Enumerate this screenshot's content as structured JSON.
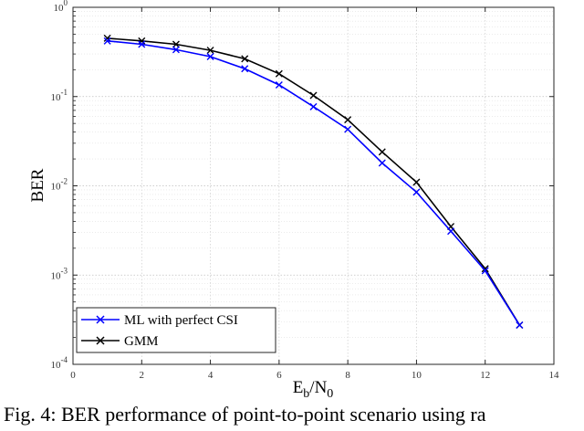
{
  "chart_data": {
    "type": "line",
    "xlabel": {
      "main": "E",
      "sub1": "b",
      "sep": "/N",
      "sub2": "0"
    },
    "ylabel": "BER",
    "xlim": [
      0,
      14
    ],
    "ylim": [
      0.0001,
      1
    ],
    "yscale": "log",
    "grid": true,
    "legend_position": "bottom-left",
    "x_ticks": [
      "0",
      "2",
      "4",
      "6",
      "8",
      "10",
      "12",
      "14"
    ],
    "y_ticks": [
      {
        "base": "10",
        "exp": "-4"
      },
      {
        "base": "10",
        "exp": "-3"
      },
      {
        "base": "10",
        "exp": "-2"
      },
      {
        "base": "10",
        "exp": "-1"
      },
      {
        "base": "10",
        "exp": "0"
      }
    ],
    "series": [
      {
        "name": "ML with perfect CSI",
        "color": "#0000ff",
        "x": [
          1,
          2,
          3,
          4,
          5,
          6,
          7,
          8,
          9,
          10,
          11,
          12,
          13
        ],
        "y": [
          0.42,
          0.385,
          0.335,
          0.28,
          0.205,
          0.135,
          0.077,
          0.043,
          0.018,
          0.0085,
          0.0031,
          0.00112,
          0.000275
        ]
      },
      {
        "name": "GMM",
        "color": "#000000",
        "x": [
          1,
          2,
          3,
          4,
          5,
          6,
          7,
          8,
          9,
          10,
          11,
          12,
          13
        ],
        "y": [
          0.45,
          0.42,
          0.385,
          0.33,
          0.265,
          0.18,
          0.103,
          0.055,
          0.024,
          0.011,
          0.0035,
          0.00118,
          0.000275
        ]
      }
    ]
  },
  "caption": "Fig. 4: BER performance of point-to-point scenario using ra"
}
